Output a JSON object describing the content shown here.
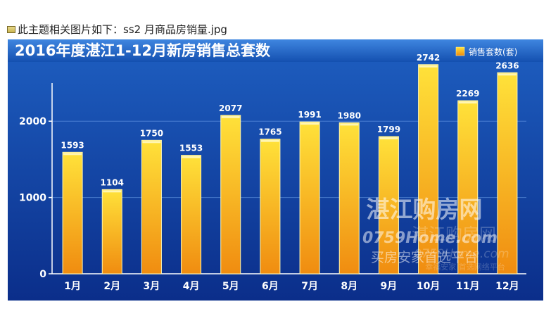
{
  "caption": {
    "text": "此主题相关图片如下：ss2 月商品房销量.jpg",
    "icon": "image-file-icon"
  },
  "colors": {
    "background_top": "#1e5fc1",
    "background_bottom": "#0b2e8a",
    "bar_top": "#ffe23a",
    "bar_bottom": "#f08c10",
    "bar_edge": "#fff6b0",
    "text": "#ffffff"
  },
  "watermark": {
    "line1": "湛江购房网",
    "line2": "0759Home.com",
    "line3": "买房安家首选平台",
    "faint1": "湛江购房网",
    "faint2": "0759Home.com",
    "faint3": "幸福安家 首选网络平台"
  },
  "chart_data": {
    "type": "bar",
    "title": "2016年度湛江1-12月新房销售总套数",
    "legend": "销售套数(套)",
    "legend_position": "top-right",
    "categories": [
      "1月",
      "2月",
      "3月",
      "4月",
      "5月",
      "6月",
      "7月",
      "8月",
      "9月",
      "10月",
      "11月",
      "12月"
    ],
    "series": [
      {
        "name": "销售套数(套)",
        "values": [
          1593,
          1104,
          1750,
          1553,
          2077,
          1765,
          1991,
          1980,
          1799,
          2742,
          2269,
          2636
        ]
      }
    ],
    "value_labels": [
      "1593",
      "1104",
      "1750",
      "1553",
      "2077",
      "1765",
      "1991",
      "1980",
      "1799",
      "2742",
      "2269",
      "2636"
    ],
    "y_ticks": [
      0,
      1000,
      2000
    ],
    "y_tick_labels": [
      "0",
      "1000",
      "2000"
    ],
    "ylim": [
      0,
      2500
    ],
    "grid": true
  }
}
